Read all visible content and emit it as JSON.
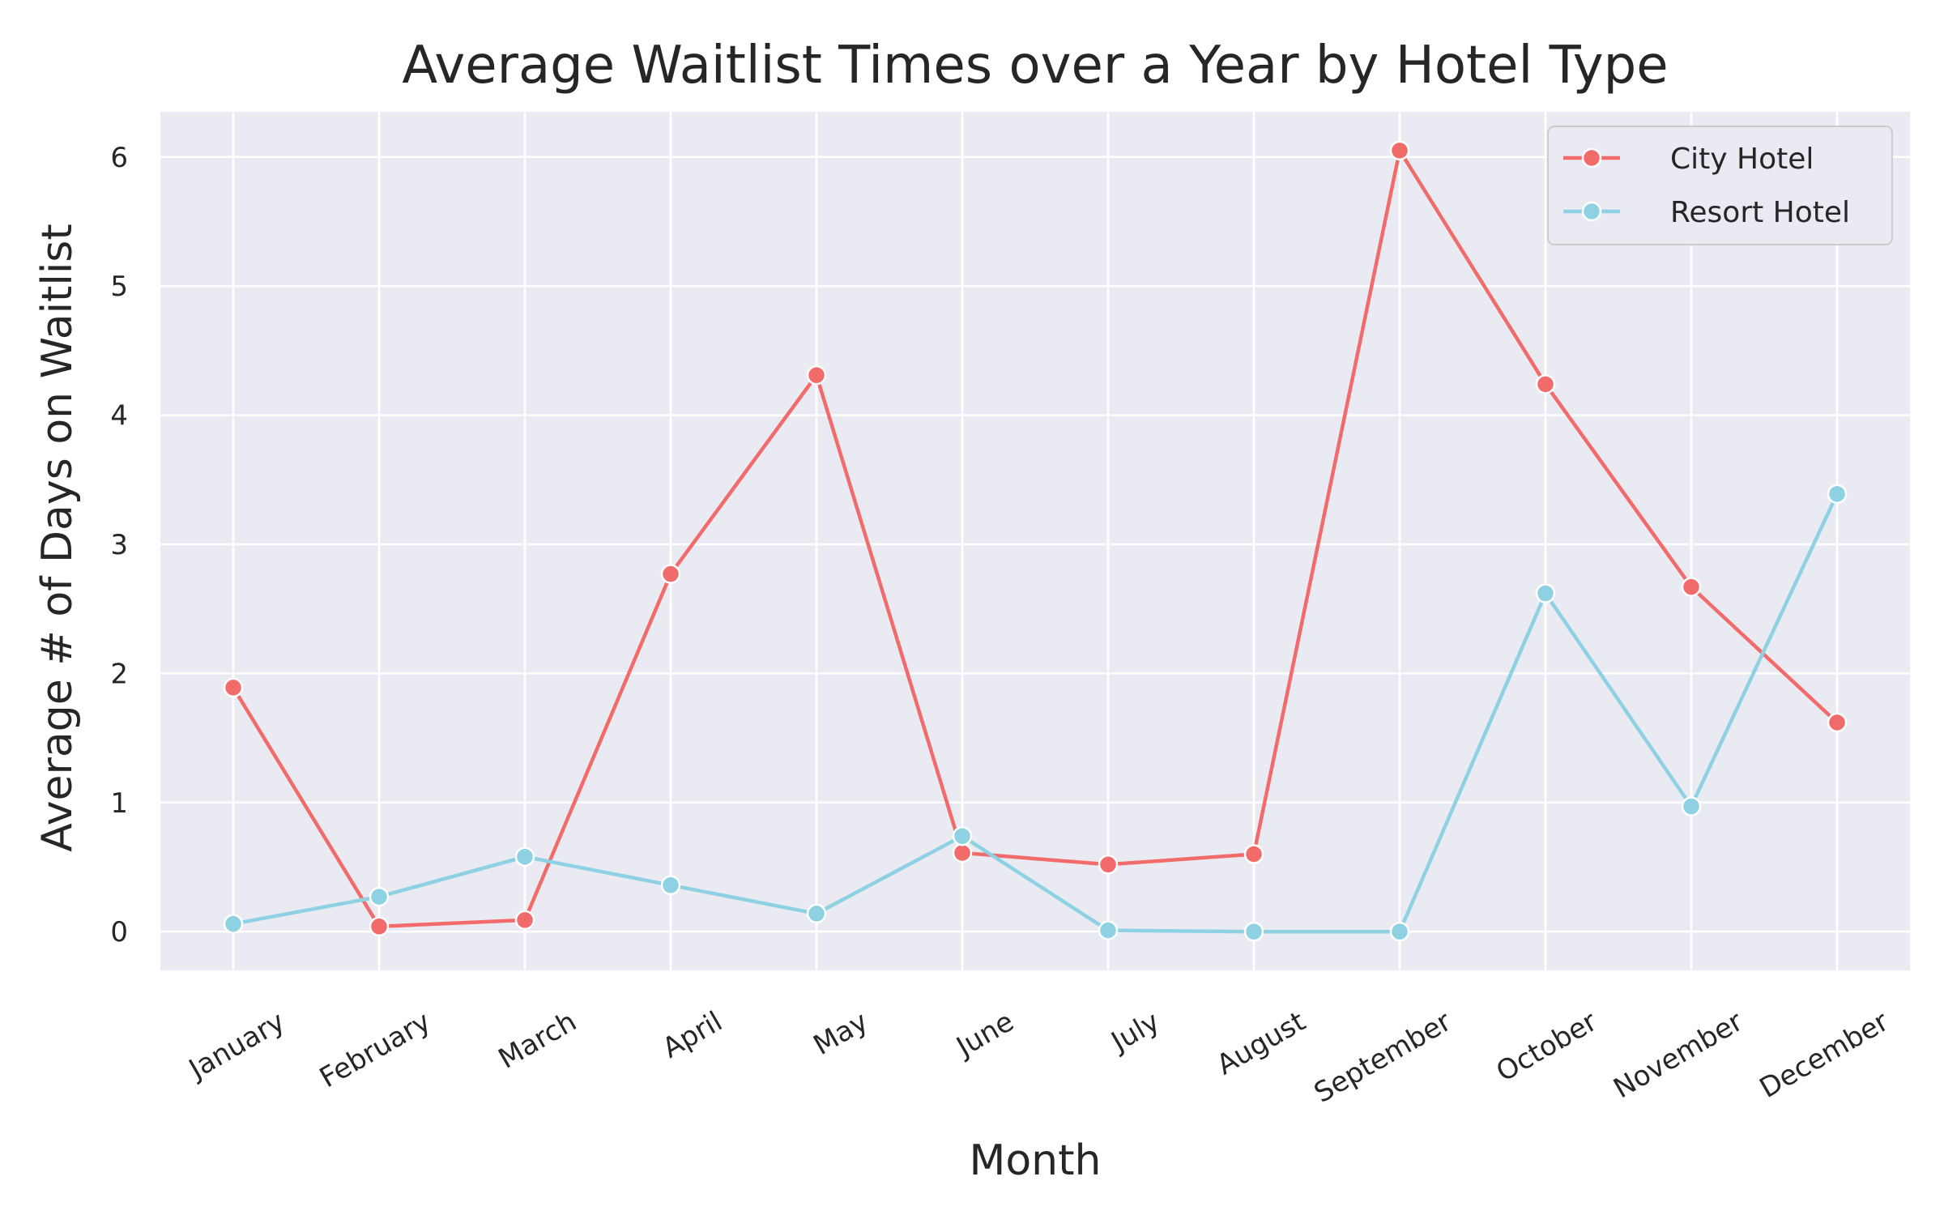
{
  "chart_data": {
    "type": "line",
    "title": "Average Waitlist Times over a Year by Hotel Type",
    "xlabel": "Month",
    "ylabel": "Average # of Days on Waitlist",
    "categories": [
      "January",
      "February",
      "March",
      "April",
      "May",
      "June",
      "July",
      "August",
      "September",
      "October",
      "November",
      "December"
    ],
    "ylim": [
      -0.3,
      6.35
    ],
    "yticks": [
      0,
      1,
      2,
      3,
      4,
      5,
      6
    ],
    "grid": true,
    "legend_position": "top-right",
    "series": [
      {
        "name": "City Hotel",
        "color": "#f26b6b",
        "values": [
          1.89,
          0.04,
          0.09,
          2.77,
          4.31,
          0.61,
          0.52,
          0.6,
          6.05,
          4.24,
          2.67,
          1.62
        ]
      },
      {
        "name": "Resort Hotel",
        "color": "#8dd1e2",
        "values": [
          0.06,
          0.27,
          0.58,
          0.36,
          0.14,
          0.74,
          0.01,
          0.0,
          0.0,
          2.62,
          0.97,
          3.39
        ]
      }
    ]
  },
  "style": {
    "plot_background": "#eaeaf2",
    "grid_color": "#ffffff"
  }
}
